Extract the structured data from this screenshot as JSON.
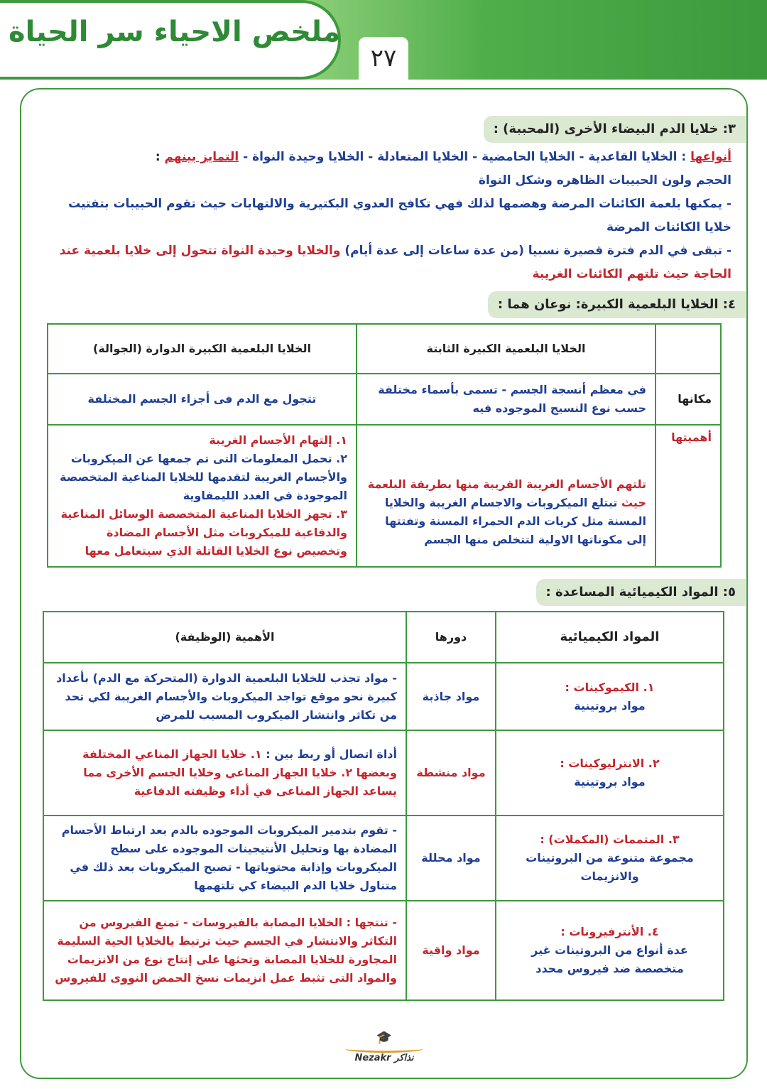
{
  "header": {
    "title": "ملخص الاحياء سر الحياة",
    "page_number": "٢٧"
  },
  "section3": {
    "heading": "٣: خلايا الدم البيضاء الأخرى (المحببة) :",
    "types_label": "أنواعها",
    "types": " : الخلايا القاعدية - الخلايا الحامضية - الخلايا المتعادلة - الخلايا وحيدة النواة - ",
    "distinction_label": "التمايز بينهم",
    "distinction": " :",
    "line2": "الحجم ولون الحبيبات الظاهره وشكل النواة",
    "bullet1": "- يمكنها بلعمة الكائنات المرضة وهضمها لذلك فهي تكافح العدوي البكتيرية والالتهابات حيث تقوم الحبيبات بتفتيت خلايا الكائنات المرضة",
    "bullet2_blue": "- تبقى في الدم فترة قصيرة نسبيا (من عدة ساعات إلى عدة أيام) ",
    "bullet2_red": "والخلايا وحيدة النواة تتحول إلى خلايا بلعمية عند الحاجة حيث تلتهم الكائنات الغريبة"
  },
  "section4": {
    "heading": "٤: الخلايا البلعمية الكبيرة: نوعان هما :",
    "table": {
      "col_fixed": "الخلايا البلعمية الكبيرة الثابتة",
      "col_mobile": "الخلايا البلعمية الكبيرة الدوارة (الجوالة)",
      "row_location": {
        "label": "مكانها",
        "fixed": "في معظم أنسجة الجسم - تسمى بأسماء مختلفة حسب نوع النسيج الموجوده فيه",
        "mobile": "تتجول مع الدم فى أجزاء الجسم المختلفة"
      },
      "row_importance": {
        "label": "أهميتها",
        "fixed_red": "تلتهم الأجسام الغريبة القريبة منها بطريقة البلعمة حيث ",
        "fixed_blue": "تبتلع الميكروبات والاجسام الغريبة والخلايا المسنة مثل كريات الدم الحمراء المسنة وتفتتها إلى مكوناتها الاولية لتتخلص منها الجسم",
        "mobile_1": "١. إلتهام الأجسام الغريبة",
        "mobile_2": "٢. تحمل المعلومات التى تم جمعها عن الميكروبات والأجسام الغريبة لتقدمها للخلايا المناعية المتخصصة الموجودة في الغدد الليمفاوية",
        "mobile_3": "٣. تجهز الخلايا المناعية المتخصصة الوسائل المناعية والدفاعية للميكروبات مثل الأجسام المضادة وتخصيص نوع الخلايا القاتلة الذي سيتعامل معها"
      }
    }
  },
  "section5": {
    "heading": "٥: المواد الكيميائية المساعدة :",
    "table": {
      "headers": [
        "المواد الكيميائية",
        "دورها",
        "الأهمية (الوظيفة)"
      ],
      "rows": [
        {
          "name": "١. الكيموكينات :",
          "desc": "مواد بروتينية",
          "role": "مواد جاذبة",
          "importance_blue": "- مواد تجذب للخلايا البلعمية الدوارة (المتحركة مع الدم) بأعداد كبيرة نحو موقع تواجد الميكروبات والأجسام الغريبة لكي تحد من تكاثر وانتشار الميكروب المسبب للمرض",
          "importance_red": ""
        },
        {
          "name": "٢. الانترليوكينات :",
          "desc": "مواد بروتينية",
          "role": "مواد منشطة",
          "importance_blue": "أداة اتصال أو ربط بين : ",
          "importance_red": "١. خلايا الجهاز المناعي المختلفة وبعضها ٢. خلايا الجهاز المناعي وخلايا الجسم الأخرى مما يساعد الجهاز المناعى في أداء وظيفته الدفاعية"
        },
        {
          "name": "٣. المتممات (المكملات) :",
          "desc": "مجموعة متنوعة من البروتينات والانزيمات",
          "role": "مواد محللة",
          "importance_blue": "- تقوم بتدمير الميكروبات الموجوده بالدم بعد ارتباط الأجسام المضادة بها وتحليل الأنتيجينات الموجوده على سطح الميكروبات وإذابة محتوياتها - تصبح الميكروبات بعد ذلك في متناول خلايا الدم البيضاء كي تلتهمها",
          "importance_red": ""
        },
        {
          "name": "٤. الأنترفيرونات :",
          "desc": "عدة أنواع من البروتينات غير متخصصة ضد فيروس محدد",
          "role": "مواد واقية",
          "importance_blue": "",
          "importance_red": "- تنتجها : الخلايا المصابة بالفيروسات - تمنع الفيروس من التكاثر والانتشار في الجسم حيث ترتبط بالخلايا الحية السليمة المجاورة للخلايا المصابة وتحثها على إنتاج نوع من الانزيمات والمواد التى تثبط عمل انزيمات نسخ الحمض النووى للفيروس"
        }
      ]
    }
  },
  "footer": {
    "logo_text": "Nezakr نذاكر"
  },
  "colors": {
    "green": "#3d9a3c",
    "blue": "#1f3f93",
    "red": "#c3262d"
  }
}
